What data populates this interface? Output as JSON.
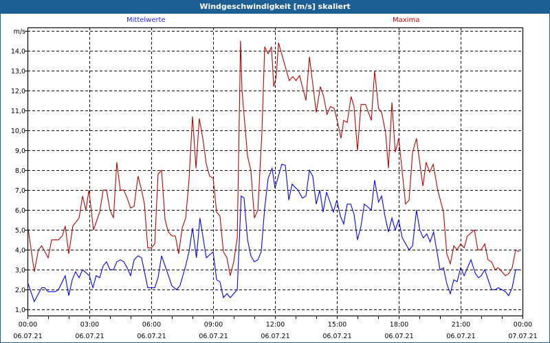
{
  "window": {
    "title": "Windgeschwindigkeit [m/s] skaliert"
  },
  "chart_data": {
    "type": "line",
    "title": "Windgeschwindigkeit [m/s] skaliert",
    "ylabel": "m/s",
    "ylim": [
      0.7,
      15.17
    ],
    "xlim_hours": [
      0,
      24
    ],
    "grid": true,
    "yticks": [
      {
        "v": 1,
        "label": "1,0"
      },
      {
        "v": 2,
        "label": "2,0"
      },
      {
        "v": 3,
        "label": "3,0"
      },
      {
        "v": 4,
        "label": "4,0"
      },
      {
        "v": 5,
        "label": "5,0"
      },
      {
        "v": 6,
        "label": "6,0"
      },
      {
        "v": 7,
        "label": "7,0"
      },
      {
        "v": 8,
        "label": "8,0"
      },
      {
        "v": 9,
        "label": "9,0"
      },
      {
        "v": 10,
        "label": "10,0"
      },
      {
        "v": 11,
        "label": "11,0"
      },
      {
        "v": 12,
        "label": "12,0"
      },
      {
        "v": 13,
        "label": "13,0"
      },
      {
        "v": 14,
        "label": "14,0"
      },
      {
        "v": 15,
        "label": "m/s"
      }
    ],
    "xticks": [
      {
        "h": 0,
        "time": "00:00",
        "date": "06.07.21"
      },
      {
        "h": 3,
        "time": "03:00",
        "date": "06.07.21"
      },
      {
        "h": 6,
        "time": "06:00",
        "date": "06.07.21"
      },
      {
        "h": 9,
        "time": "09:00",
        "date": "06.07.21"
      },
      {
        "h": 12,
        "time": "12:00",
        "date": "06.07.21"
      },
      {
        "h": 15,
        "time": "15:00",
        "date": "06.07.21"
      },
      {
        "h": 18,
        "time": "18:00",
        "date": "06.07.21"
      },
      {
        "h": 21,
        "time": "21:00",
        "date": "06.07.21"
      },
      {
        "h": 24,
        "time": "00:00",
        "date": "07.07.21"
      }
    ],
    "series": [
      {
        "name": "Mittelwerte",
        "color": "#0000ff",
        "points": [
          [
            0.03,
            2.3
          ],
          [
            0.33,
            1.4
          ],
          [
            0.53,
            1.8
          ],
          [
            0.69,
            2.1
          ],
          [
            0.83,
            2.1
          ],
          [
            1.0,
            1.9
          ],
          [
            1.33,
            1.9
          ],
          [
            1.5,
            2.0
          ],
          [
            1.83,
            2.7
          ],
          [
            2.0,
            1.7
          ],
          [
            2.17,
            2.5
          ],
          [
            2.33,
            2.9
          ],
          [
            2.5,
            2.6
          ],
          [
            2.67,
            3.0
          ],
          [
            3.0,
            2.7
          ],
          [
            3.17,
            2.1
          ],
          [
            3.33,
            2.7
          ],
          [
            3.5,
            2.6
          ],
          [
            3.67,
            3.2
          ],
          [
            3.83,
            3.4
          ],
          [
            4.0,
            3.0
          ],
          [
            4.17,
            3.0
          ],
          [
            4.33,
            3.4
          ],
          [
            4.5,
            3.5
          ],
          [
            4.67,
            3.4
          ],
          [
            4.83,
            3.1
          ],
          [
            5.0,
            2.7
          ],
          [
            5.17,
            3.5
          ],
          [
            5.36,
            3.7
          ],
          [
            5.53,
            3.6
          ],
          [
            5.67,
            2.9
          ],
          [
            5.83,
            2.1
          ],
          [
            6.17,
            2.1
          ],
          [
            6.33,
            2.6
          ],
          [
            6.5,
            3.7
          ],
          [
            6.67,
            3.2
          ],
          [
            7.0,
            2.2
          ],
          [
            7.22,
            2.0
          ],
          [
            7.39,
            2.2
          ],
          [
            7.67,
            3.2
          ],
          [
            7.83,
            3.9
          ],
          [
            8.0,
            5.1
          ],
          [
            8.19,
            3.6
          ],
          [
            8.36,
            5.6
          ],
          [
            8.67,
            3.6
          ],
          [
            9.0,
            3.9
          ],
          [
            9.17,
            2.5
          ],
          [
            9.33,
            2.4
          ],
          [
            9.5,
            1.6
          ],
          [
            9.67,
            1.8
          ],
          [
            9.83,
            1.6
          ],
          [
            10.17,
            2.0
          ],
          [
            10.36,
            6.7
          ],
          [
            10.5,
            6.6
          ],
          [
            10.67,
            4.5
          ],
          [
            10.83,
            3.7
          ],
          [
            11.0,
            3.4
          ],
          [
            11.17,
            3.5
          ],
          [
            11.33,
            3.9
          ],
          [
            11.5,
            6.1
          ],
          [
            11.67,
            7.6
          ],
          [
            11.86,
            8.1
          ],
          [
            12.0,
            7.1
          ],
          [
            12.33,
            8.3
          ],
          [
            12.5,
            8.25
          ],
          [
            12.67,
            6.5
          ],
          [
            12.83,
            7.3
          ],
          [
            13.11,
            7.0
          ],
          [
            13.33,
            6.6
          ],
          [
            13.5,
            6.7
          ],
          [
            13.67,
            8.0
          ],
          [
            13.83,
            7.7
          ],
          [
            14.0,
            6.3
          ],
          [
            14.17,
            7.0
          ],
          [
            14.33,
            5.9
          ],
          [
            14.5,
            6.9
          ],
          [
            14.83,
            5.9
          ],
          [
            15.0,
            6.5
          ],
          [
            15.17,
            5.7
          ],
          [
            15.33,
            5.3
          ],
          [
            15.5,
            6.3
          ],
          [
            15.67,
            6.3
          ],
          [
            15.83,
            5.8
          ],
          [
            16.0,
            4.5
          ],
          [
            16.17,
            5.2
          ],
          [
            16.33,
            6.3
          ],
          [
            16.67,
            6.0
          ],
          [
            16.83,
            7.5
          ],
          [
            17.02,
            6.4
          ],
          [
            17.17,
            6.7
          ],
          [
            17.33,
            5.7
          ],
          [
            17.5,
            4.9
          ],
          [
            17.67,
            5.6
          ],
          [
            17.83,
            5.0
          ],
          [
            18.0,
            5.5
          ],
          [
            18.17,
            4.6
          ],
          [
            18.5,
            4.0
          ],
          [
            18.67,
            4.2
          ],
          [
            18.86,
            6.0
          ],
          [
            19.02,
            5.0
          ],
          [
            19.19,
            4.6
          ],
          [
            19.36,
            4.8
          ],
          [
            19.52,
            4.4
          ],
          [
            19.69,
            4.9
          ],
          [
            20.0,
            3.0
          ],
          [
            20.17,
            3.1
          ],
          [
            20.33,
            2.3
          ],
          [
            20.5,
            1.8
          ],
          [
            20.67,
            2.5
          ],
          [
            20.83,
            2.4
          ],
          [
            21.0,
            3.1
          ],
          [
            21.17,
            2.7
          ],
          [
            21.5,
            3.5
          ],
          [
            21.72,
            2.8
          ],
          [
            21.87,
            2.6
          ],
          [
            22.0,
            2.7
          ],
          [
            22.17,
            3.0
          ],
          [
            22.5,
            2.0
          ],
          [
            22.67,
            2.0
          ],
          [
            22.83,
            2.1
          ],
          [
            23.17,
            1.9
          ],
          [
            23.33,
            1.7
          ],
          [
            23.5,
            2.1
          ],
          [
            23.67,
            3.0
          ],
          [
            23.83,
            3.0
          ]
        ]
      },
      {
        "name": "Maxima",
        "color": "#c00000",
        "points": [
          [
            0.03,
            5.06
          ],
          [
            0.33,
            2.9
          ],
          [
            0.53,
            4.0
          ],
          [
            0.69,
            4.2
          ],
          [
            1.0,
            3.6
          ],
          [
            1.17,
            4.5
          ],
          [
            1.5,
            4.5
          ],
          [
            1.69,
            4.7
          ],
          [
            1.83,
            5.2
          ],
          [
            2.0,
            3.8
          ],
          [
            2.2,
            5.2
          ],
          [
            2.5,
            5.6
          ],
          [
            2.67,
            6.7
          ],
          [
            2.83,
            6.0
          ],
          [
            2.98,
            7.0
          ],
          [
            3.2,
            5.0
          ],
          [
            3.5,
            5.9
          ],
          [
            3.67,
            7.0
          ],
          [
            3.83,
            7.0
          ],
          [
            4.0,
            6.0
          ],
          [
            4.17,
            5.6
          ],
          [
            4.33,
            8.4
          ],
          [
            4.5,
            7.0
          ],
          [
            4.67,
            7.0
          ],
          [
            4.83,
            6.6
          ],
          [
            5.0,
            6.1
          ],
          [
            5.17,
            6.2
          ],
          [
            5.36,
            7.7
          ],
          [
            5.53,
            7.0
          ],
          [
            5.67,
            6.3
          ],
          [
            5.83,
            4.1
          ],
          [
            6.0,
            4.1
          ],
          [
            6.17,
            4.3
          ],
          [
            6.33,
            7.8
          ],
          [
            6.5,
            8.0
          ],
          [
            6.67,
            5.5
          ],
          [
            6.83,
            4.9
          ],
          [
            7.0,
            4.7
          ],
          [
            7.17,
            4.7
          ],
          [
            7.33,
            3.8
          ],
          [
            7.5,
            5.1
          ],
          [
            7.67,
            5.6
          ],
          [
            7.83,
            7.5
          ],
          [
            8.0,
            10.7
          ],
          [
            8.17,
            8.1
          ],
          [
            8.33,
            10.6
          ],
          [
            8.5,
            9.6
          ],
          [
            8.67,
            8.3
          ],
          [
            8.83,
            7.7
          ],
          [
            9.0,
            7.6
          ],
          [
            9.17,
            5.9
          ],
          [
            9.33,
            5.7
          ],
          [
            9.5,
            3.9
          ],
          [
            9.67,
            3.6
          ],
          [
            9.83,
            2.7
          ],
          [
            10.0,
            3.4
          ],
          [
            10.17,
            4.6
          ],
          [
            10.33,
            14.5
          ],
          [
            10.4,
            12.0
          ],
          [
            10.67,
            8.7
          ],
          [
            10.83,
            8.0
          ],
          [
            11.0,
            5.6
          ],
          [
            11.17,
            6.0
          ],
          [
            11.37,
            10.0
          ],
          [
            11.5,
            14.2
          ],
          [
            11.67,
            13.85
          ],
          [
            11.83,
            14.2
          ],
          [
            11.94,
            12.2
          ],
          [
            12.06,
            12.7
          ],
          [
            12.17,
            14.4
          ],
          [
            12.5,
            13.2
          ],
          [
            12.69,
            12.5
          ],
          [
            12.86,
            12.7
          ],
          [
            13.02,
            12.5
          ],
          [
            13.19,
            12.75
          ],
          [
            13.5,
            11.5
          ],
          [
            13.67,
            13.7
          ],
          [
            14.0,
            10.9
          ],
          [
            14.2,
            12.2
          ],
          [
            14.36,
            11.7
          ],
          [
            14.52,
            10.8
          ],
          [
            14.69,
            11.2
          ],
          [
            14.87,
            11.1
          ],
          [
            15.06,
            10.3
          ],
          [
            15.2,
            9.6
          ],
          [
            15.33,
            10.5
          ],
          [
            15.5,
            10.4
          ],
          [
            15.69,
            11.7
          ],
          [
            15.83,
            11.2
          ],
          [
            16.0,
            9.0
          ],
          [
            16.17,
            11.3
          ],
          [
            16.39,
            11.3
          ],
          [
            16.67,
            10.5
          ],
          [
            16.83,
            13.0
          ],
          [
            17.02,
            11.1
          ],
          [
            17.17,
            10.9
          ],
          [
            17.36,
            9.9
          ],
          [
            17.5,
            8.1
          ],
          [
            17.67,
            11.4
          ],
          [
            17.83,
            8.9
          ],
          [
            18.0,
            9.6
          ],
          [
            18.17,
            7.9
          ],
          [
            18.33,
            6.3
          ],
          [
            18.5,
            6.5
          ],
          [
            18.67,
            8.9
          ],
          [
            18.86,
            9.6
          ],
          [
            19.17,
            7.2
          ],
          [
            19.33,
            8.4
          ],
          [
            19.5,
            7.9
          ],
          [
            19.67,
            8.3
          ],
          [
            19.89,
            7.0
          ],
          [
            20.17,
            5.9
          ],
          [
            20.33,
            3.8
          ],
          [
            20.5,
            3.3
          ],
          [
            20.67,
            4.2
          ],
          [
            20.83,
            4.0
          ],
          [
            21.0,
            4.3
          ],
          [
            21.17,
            4.1
          ],
          [
            21.33,
            4.7
          ],
          [
            21.67,
            5.0
          ],
          [
            21.83,
            4.0
          ],
          [
            22.0,
            4.0
          ],
          [
            22.17,
            4.3
          ],
          [
            22.33,
            3.5
          ],
          [
            22.5,
            3.4
          ],
          [
            22.67,
            3.0
          ],
          [
            22.83,
            3.1
          ],
          [
            23.17,
            2.7
          ],
          [
            23.33,
            2.8
          ],
          [
            23.5,
            3.1
          ],
          [
            23.67,
            4.0
          ],
          [
            23.83,
            3.9
          ]
        ]
      }
    ]
  }
}
